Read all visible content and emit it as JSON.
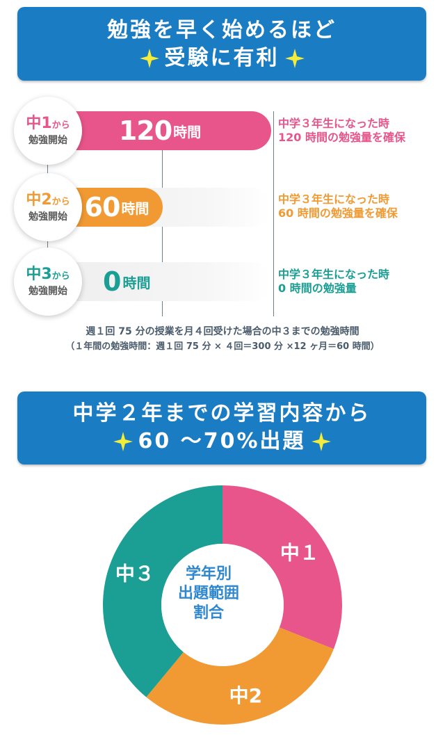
{
  "banner1": {
    "line1": "勉強を早く始めるほど",
    "line2": "受験に有利"
  },
  "chart_data": [
    {
      "type": "bar",
      "orientation": "horizontal",
      "categories": [
        "中1から勉強開始",
        "中2から勉強開始",
        "中3から勉強開始"
      ],
      "values": [
        120,
        60,
        0
      ],
      "unit": "時間",
      "xlim": [
        0,
        120
      ],
      "bars": [
        {
          "grade": "中1",
          "suffix": "から",
          "start": "勉強開始",
          "value": 120,
          "value_text": "120",
          "unit": "時間",
          "color": "#e8558a",
          "note": [
            "中学３年生になった時",
            "120 時間の勉強量を確保"
          ]
        },
        {
          "grade": "中2",
          "suffix": "から",
          "start": "勉強開始",
          "value": 60,
          "value_text": "60",
          "unit": "時間",
          "color": "#f19a33",
          "note": [
            "中学３年生になった時",
            "60 時間の勉強量を確保"
          ]
        },
        {
          "grade": "中3",
          "suffix": "から",
          "start": "勉強開始",
          "value": 0,
          "value_text": "0",
          "unit": "時間",
          "color": "#1b9e93",
          "note": [
            "中学３年生になった時",
            "0 時間の勉強量"
          ]
        }
      ],
      "caption": "週１回 75 分の授業を月４回受けた場合の中３までの勉強時間",
      "formula": "（１年間の勉強時間：週１回 75 分 × ４回＝300 分 ×12 ヶ月＝60 時間）"
    },
    {
      "type": "pie",
      "donut": true,
      "center_label": [
        "学年別",
        "出題範囲",
        "割合"
      ],
      "slices": [
        {
          "label": "中１",
          "value": 0.31,
          "color": "#e8558a"
        },
        {
          "label": "中2",
          "value": 0.3,
          "color": "#f19a33"
        },
        {
          "label": "中３",
          "value": 0.39,
          "color": "#1b9e93"
        }
      ]
    }
  ],
  "banner2": {
    "line1": "中学２年までの学習内容から",
    "line2": "60 〜70%出題"
  },
  "colors": {
    "banner": "#1a7cc3",
    "pink": "#e8558a",
    "orange": "#f19a33",
    "teal": "#1b9e93",
    "sparkle": "#f4ec3a"
  }
}
